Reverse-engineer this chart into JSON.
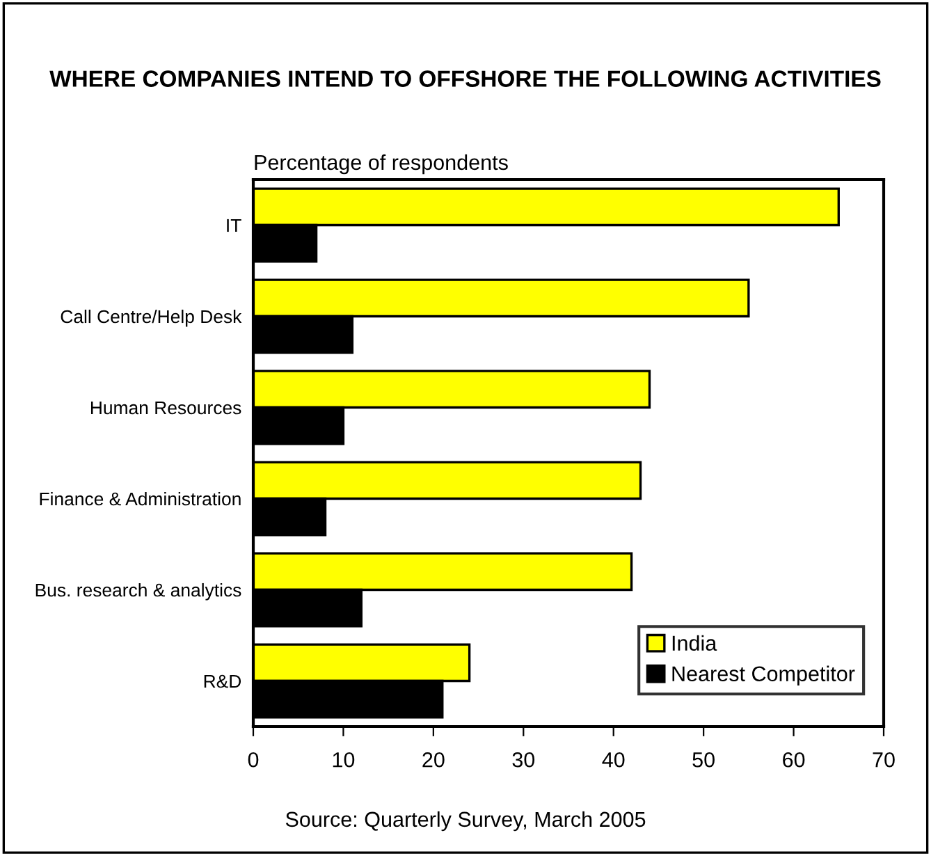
{
  "chart_data": {
    "type": "bar",
    "orientation": "horizontal",
    "title": "WHERE COMPANIES INTEND TO OFFSHORE THE FOLLOWING ACTIVITIES",
    "subtitle": "Percentage of respondents",
    "categories": [
      "IT",
      "Call Centre/Help Desk",
      "Human Resources",
      "Finance & Administration",
      "Bus. research & analytics",
      "R&D"
    ],
    "series": [
      {
        "name": "India",
        "color": "#ffff00",
        "values": [
          65,
          55,
          44,
          43,
          42,
          24
        ]
      },
      {
        "name": "Nearest Competitor",
        "color": "#000000",
        "values": [
          7,
          11,
          10,
          8,
          12,
          21
        ]
      }
    ],
    "xlim": [
      0,
      70
    ],
    "xticks": [
      0,
      10,
      20,
      30,
      40,
      50,
      60,
      70
    ],
    "grid": false,
    "legend": "bottom right",
    "annotations": [
      "Source: Quarterly Survey, March 2005"
    ]
  }
}
